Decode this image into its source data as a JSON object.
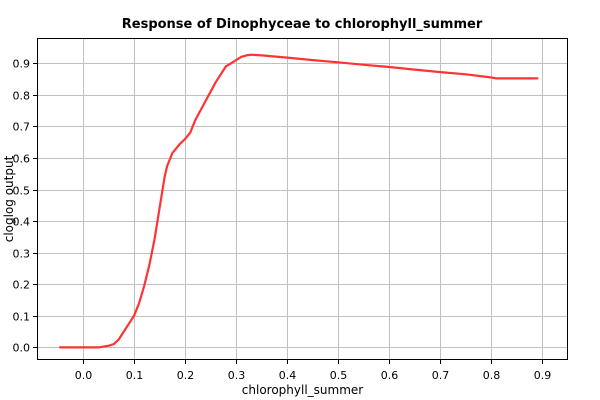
{
  "chart_data": {
    "type": "line",
    "title": "Response of Dinophyceae to chlorophyll_summer",
    "xlabel": "chlorophyll_summer",
    "ylabel": "cloglog output",
    "xlim": [
      -0.09,
      0.95
    ],
    "ylim": [
      -0.04,
      0.98
    ],
    "x_ticks": [
      0.0,
      0.1,
      0.2,
      0.3,
      0.4,
      0.5,
      0.6,
      0.7,
      0.8,
      0.9
    ],
    "x_tick_labels": [
      "0.0",
      "0.1",
      "0.2",
      "0.3",
      "0.4",
      "0.5",
      "0.6",
      "0.7",
      "0.8",
      "0.9"
    ],
    "y_ticks": [
      0.0,
      0.1,
      0.2,
      0.3,
      0.4,
      0.5,
      0.6,
      0.7,
      0.8,
      0.9
    ],
    "y_tick_labels": [
      "0.0",
      "0.1",
      "0.2",
      "0.3",
      "0.4",
      "0.5",
      "0.6",
      "0.7",
      "0.8",
      "0.9"
    ],
    "grid": true,
    "series": [
      {
        "color": "#ff3333",
        "x": [
          -0.045,
          0.0,
          0.03,
          0.05,
          0.06,
          0.07,
          0.08,
          0.09,
          0.1,
          0.11,
          0.12,
          0.13,
          0.14,
          0.15,
          0.16,
          0.165,
          0.17,
          0.175,
          0.18,
          0.185,
          0.19,
          0.2,
          0.21,
          0.22,
          0.23,
          0.24,
          0.25,
          0.26,
          0.27,
          0.28,
          0.29,
          0.3,
          0.31,
          0.32,
          0.33,
          0.35,
          0.4,
          0.45,
          0.5,
          0.55,
          0.6,
          0.65,
          0.7,
          0.75,
          0.8,
          0.81,
          0.85,
          0.89
        ],
        "y": [
          0.0,
          0.0,
          0.0,
          0.005,
          0.01,
          0.025,
          0.05,
          0.075,
          0.1,
          0.14,
          0.195,
          0.26,
          0.34,
          0.44,
          0.54,
          0.575,
          0.595,
          0.615,
          0.625,
          0.635,
          0.645,
          0.66,
          0.68,
          0.72,
          0.75,
          0.78,
          0.81,
          0.84,
          0.865,
          0.89,
          0.9,
          0.91,
          0.92,
          0.925,
          0.927,
          0.925,
          0.918,
          0.91,
          0.903,
          0.895,
          0.888,
          0.88,
          0.872,
          0.865,
          0.855,
          0.852,
          0.852,
          0.852
        ]
      }
    ]
  }
}
